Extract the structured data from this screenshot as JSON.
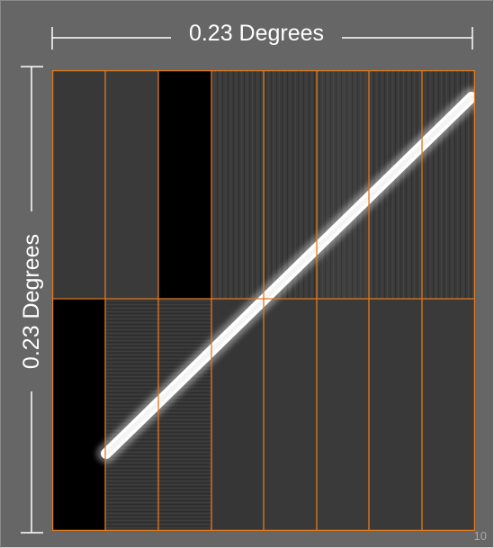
{
  "scale_labels": {
    "horizontal": "0.23 Degrees",
    "vertical": "0.23 Degrees"
  },
  "page_number": "10",
  "colors": {
    "background": "#666666",
    "grid_lines": "#e07a1f",
    "streak": "#ffffff",
    "dimension_lines": "#ffffff"
  },
  "mosaic": {
    "rows": 2,
    "columns": 8,
    "dark_tiles": [
      "row1-col3",
      "row2-col1"
    ]
  }
}
